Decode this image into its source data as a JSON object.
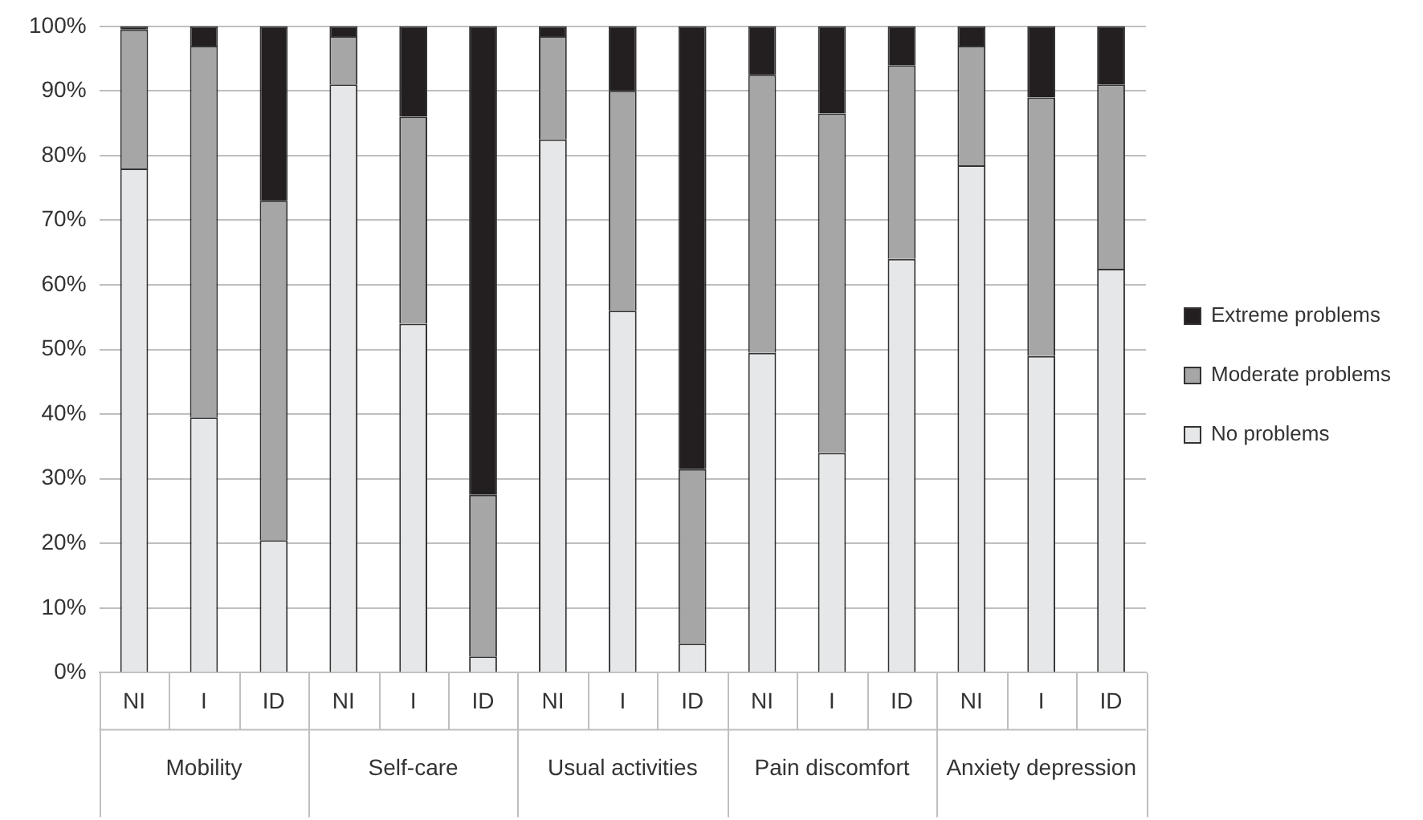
{
  "chart_data": {
    "type": "bar",
    "stacked": true,
    "categories": [
      "NI",
      "I",
      "ID",
      "NI",
      "I",
      "ID",
      "NI",
      "I",
      "ID",
      "NI",
      "I",
      "ID",
      "NI",
      "I",
      "ID"
    ],
    "annotations": [
      "Mobility",
      "Self-care",
      "Usual activities",
      "Pain discomfort",
      "Anxiety depression"
    ],
    "series": [
      {
        "name": "No problems",
        "color": "#e6e7e8",
        "values": [
          78,
          39.5,
          20.5,
          91,
          54,
          2.5,
          82.5,
          56,
          4.5,
          49.5,
          34,
          64,
          78.5,
          49,
          62.5
        ]
      },
      {
        "name": "Moderate problems",
        "color": "#a6a6a6",
        "values": [
          21.5,
          57.5,
          52.5,
          7.5,
          32,
          25,
          16,
          34,
          27,
          43,
          52.5,
          30,
          18.5,
          40,
          28.5
        ]
      },
      {
        "name": "Extreme problems",
        "color": "#231f20",
        "values": [
          0.5,
          3,
          27,
          1.5,
          14,
          72.5,
          1.5,
          10,
          68.5,
          7.5,
          13.5,
          6,
          3,
          11,
          9
        ]
      }
    ],
    "ylim": [
      0,
      100
    ],
    "yticks": [
      {
        "value": 0,
        "label": "0%"
      },
      {
        "value": 10,
        "label": "10%"
      },
      {
        "value": 20,
        "label": "20%"
      },
      {
        "value": 30,
        "label": "30%"
      },
      {
        "value": 40,
        "label": "40%"
      },
      {
        "value": 50,
        "label": "50%"
      },
      {
        "value": 60,
        "label": "60%"
      },
      {
        "value": 70,
        "label": "70%"
      },
      {
        "value": 80,
        "label": "80%"
      },
      {
        "value": 90,
        "label": "90%"
      },
      {
        "value": 100,
        "label": "100%"
      }
    ],
    "grid": "y",
    "legend": "right"
  }
}
